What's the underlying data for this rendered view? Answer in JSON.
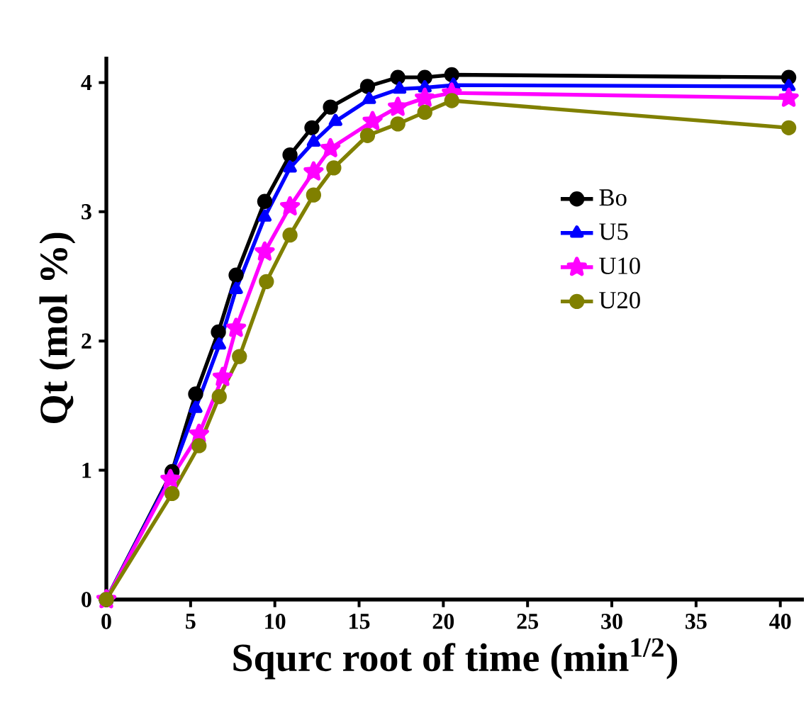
{
  "chart_data": {
    "type": "line",
    "xlabel": "Squrc root of time (min$^{1/2}$)",
    "ylabel": "Qt (mol %)",
    "xlim": [
      0,
      41.4
    ],
    "ylim": [
      0,
      4.2
    ],
    "xticks": [
      0,
      5,
      10,
      15,
      20,
      25,
      30,
      35,
      40
    ],
    "yticks": [
      0,
      1,
      2,
      3,
      4
    ],
    "grid": false,
    "legend": "right",
    "line_style": "solid",
    "series": [
      {
        "name": "Bo",
        "color": "#000000",
        "marker": "circle",
        "x": [
          0,
          3.9,
          5.3,
          6.65,
          7.7,
          9.4,
          10.9,
          12.2,
          13.3,
          15.5,
          17.3,
          18.9,
          20.5,
          40.5
        ],
        "values": [
          0,
          0.99,
          1.59,
          2.07,
          2.51,
          3.08,
          3.44,
          3.65,
          3.81,
          3.97,
          4.04,
          4.04,
          4.06,
          4.04
        ]
      },
      {
        "name": "U5",
        "color": "#0000ff",
        "marker": "triangle",
        "x": [
          0,
          3.8,
          5.3,
          6.7,
          7.7,
          9.4,
          10.9,
          12.3,
          13.6,
          15.6,
          17.4,
          18.9,
          20.6,
          40.5
        ],
        "values": [
          0,
          0.95,
          1.48,
          1.97,
          2.4,
          2.96,
          3.34,
          3.54,
          3.7,
          3.87,
          3.95,
          3.96,
          3.98,
          3.97
        ]
      },
      {
        "name": "U10",
        "color": "#ff00ff",
        "marker": "star",
        "x": [
          0,
          3.8,
          5.5,
          6.9,
          7.7,
          9.4,
          10.9,
          12.3,
          13.3,
          15.8,
          17.3,
          18.9,
          20.5,
          40.5
        ],
        "values": [
          0,
          0.93,
          1.28,
          1.72,
          2.1,
          2.69,
          3.04,
          3.31,
          3.49,
          3.7,
          3.81,
          3.88,
          3.92,
          3.88
        ]
      },
      {
        "name": "U20",
        "color": "#808000",
        "marker": "circle",
        "x": [
          0,
          3.9,
          5.5,
          6.7,
          7.9,
          9.5,
          10.9,
          12.3,
          13.5,
          15.5,
          17.3,
          18.9,
          20.5,
          40.5
        ],
        "values": [
          0,
          0.82,
          1.19,
          1.57,
          1.88,
          2.46,
          2.82,
          3.13,
          3.34,
          3.59,
          3.68,
          3.77,
          3.86,
          3.65
        ]
      }
    ]
  }
}
